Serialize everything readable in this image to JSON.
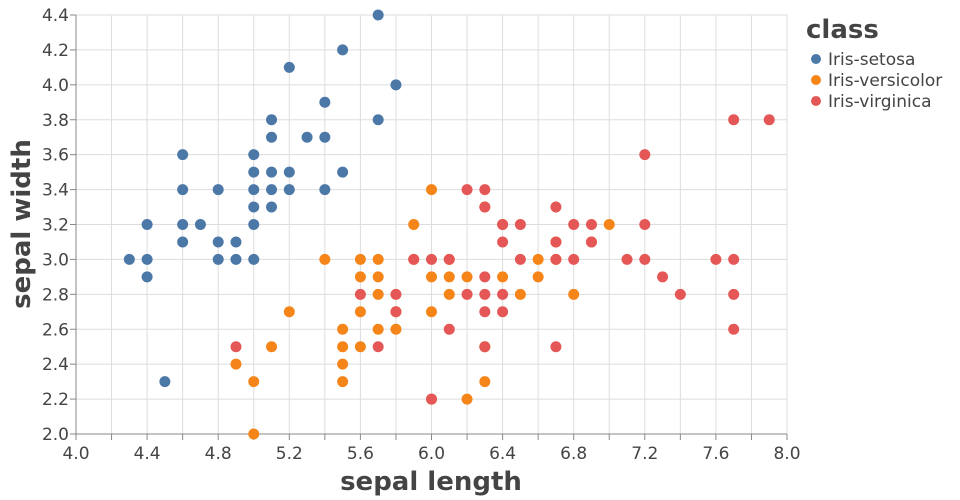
{
  "chart_data": {
    "type": "scatter",
    "title": "",
    "xlabel": "sepal length",
    "ylabel": "sepal width",
    "xlim": [
      4.0,
      8.0
    ],
    "ylim": [
      2.0,
      4.4
    ],
    "x_ticks": [
      "4.0",
      "4.4",
      "4.8",
      "5.2",
      "5.6",
      "6.0",
      "6.4",
      "6.8",
      "7.2",
      "7.6",
      "8.0"
    ],
    "y_ticks": [
      "2.0",
      "2.2",
      "2.4",
      "2.6",
      "2.8",
      "3.0",
      "3.2",
      "3.4",
      "3.6",
      "3.8",
      "4.0",
      "4.2",
      "4.4"
    ],
    "x_tick_values": [
      4.0,
      4.4,
      4.8,
      5.2,
      5.6,
      6.0,
      6.4,
      6.8,
      7.2,
      7.6,
      8.0
    ],
    "y_tick_values": [
      2.0,
      2.2,
      2.4,
      2.6,
      2.8,
      3.0,
      3.2,
      3.4,
      3.6,
      3.8,
      4.0,
      4.2,
      4.4
    ],
    "x_grid_step": 0.2,
    "y_grid_step": 0.2,
    "grid": true,
    "legend": {
      "title": "class",
      "position": "top-right"
    },
    "series": [
      {
        "name": "Iris-setosa",
        "color": "#4c78a8",
        "points": [
          [
            4.3,
            3.0
          ],
          [
            4.4,
            3.0
          ],
          [
            4.4,
            2.9
          ],
          [
            4.4,
            3.2
          ],
          [
            4.5,
            2.3
          ],
          [
            4.6,
            3.1
          ],
          [
            4.6,
            3.2
          ],
          [
            4.6,
            3.4
          ],
          [
            4.6,
            3.6
          ],
          [
            4.7,
            3.2
          ],
          [
            4.8,
            3.0
          ],
          [
            4.8,
            3.1
          ],
          [
            4.8,
            3.4
          ],
          [
            4.9,
            3.0
          ],
          [
            4.9,
            3.1
          ],
          [
            5.0,
            3.0
          ],
          [
            5.0,
            3.2
          ],
          [
            5.0,
            3.3
          ],
          [
            5.0,
            3.4
          ],
          [
            5.0,
            3.5
          ],
          [
            5.0,
            3.6
          ],
          [
            5.1,
            3.3
          ],
          [
            5.1,
            3.4
          ],
          [
            5.1,
            3.5
          ],
          [
            5.1,
            3.7
          ],
          [
            5.1,
            3.8
          ],
          [
            5.2,
            3.4
          ],
          [
            5.2,
            3.5
          ],
          [
            5.2,
            4.1
          ],
          [
            5.3,
            3.7
          ],
          [
            5.4,
            3.4
          ],
          [
            5.4,
            3.7
          ],
          [
            5.4,
            3.9
          ],
          [
            5.5,
            3.5
          ],
          [
            5.5,
            4.2
          ],
          [
            5.7,
            3.8
          ],
          [
            5.7,
            4.4
          ],
          [
            5.8,
            4.0
          ]
        ]
      },
      {
        "name": "Iris-versicolor",
        "color": "#f58518",
        "points": [
          [
            4.9,
            2.4
          ],
          [
            5.0,
            2.0
          ],
          [
            5.0,
            2.3
          ],
          [
            5.1,
            2.5
          ],
          [
            5.2,
            2.7
          ],
          [
            5.4,
            3.0
          ],
          [
            5.5,
            2.3
          ],
          [
            5.5,
            2.4
          ],
          [
            5.5,
            2.5
          ],
          [
            5.5,
            2.6
          ],
          [
            5.6,
            2.5
          ],
          [
            5.6,
            2.7
          ],
          [
            5.6,
            2.9
          ],
          [
            5.6,
            3.0
          ],
          [
            5.7,
            2.6
          ],
          [
            5.7,
            2.8
          ],
          [
            5.7,
            2.9
          ],
          [
            5.7,
            3.0
          ],
          [
            5.8,
            2.6
          ],
          [
            5.8,
            2.7
          ],
          [
            5.9,
            3.0
          ],
          [
            5.9,
            3.2
          ],
          [
            6.0,
            2.2
          ],
          [
            6.0,
            2.7
          ],
          [
            6.0,
            2.9
          ],
          [
            6.0,
            3.4
          ],
          [
            6.1,
            2.8
          ],
          [
            6.1,
            2.9
          ],
          [
            6.1,
            3.0
          ],
          [
            6.2,
            2.2
          ],
          [
            6.2,
            2.9
          ],
          [
            6.3,
            2.3
          ],
          [
            6.3,
            2.5
          ],
          [
            6.3,
            3.3
          ],
          [
            6.4,
            2.9
          ],
          [
            6.4,
            3.2
          ],
          [
            6.5,
            2.8
          ],
          [
            6.6,
            2.9
          ],
          [
            6.6,
            3.0
          ],
          [
            6.7,
            3.0
          ],
          [
            6.7,
            3.1
          ],
          [
            6.8,
            2.8
          ],
          [
            6.9,
            3.1
          ],
          [
            7.0,
            3.2
          ]
        ]
      },
      {
        "name": "Iris-virginica",
        "color": "#e45756",
        "points": [
          [
            4.9,
            2.5
          ],
          [
            5.6,
            2.8
          ],
          [
            5.7,
            2.5
          ],
          [
            5.8,
            2.7
          ],
          [
            5.8,
            2.8
          ],
          [
            5.9,
            3.0
          ],
          [
            6.0,
            2.2
          ],
          [
            6.0,
            3.0
          ],
          [
            6.1,
            2.6
          ],
          [
            6.1,
            3.0
          ],
          [
            6.2,
            2.8
          ],
          [
            6.2,
            3.4
          ],
          [
            6.3,
            2.5
          ],
          [
            6.3,
            2.7
          ],
          [
            6.3,
            2.8
          ],
          [
            6.3,
            2.9
          ],
          [
            6.3,
            3.3
          ],
          [
            6.3,
            3.4
          ],
          [
            6.4,
            2.7
          ],
          [
            6.4,
            2.8
          ],
          [
            6.4,
            3.1
          ],
          [
            6.4,
            3.2
          ],
          [
            6.5,
            3.0
          ],
          [
            6.5,
            3.2
          ],
          [
            6.7,
            2.5
          ],
          [
            6.7,
            3.0
          ],
          [
            6.7,
            3.1
          ],
          [
            6.7,
            3.3
          ],
          [
            6.8,
            3.0
          ],
          [
            6.8,
            3.2
          ],
          [
            6.9,
            3.1
          ],
          [
            6.9,
            3.2
          ],
          [
            7.1,
            3.0
          ],
          [
            7.2,
            3.0
          ],
          [
            7.2,
            3.2
          ],
          [
            7.2,
            3.6
          ],
          [
            7.3,
            2.9
          ],
          [
            7.4,
            2.8
          ],
          [
            7.6,
            3.0
          ],
          [
            7.7,
            2.6
          ],
          [
            7.7,
            2.8
          ],
          [
            7.7,
            3.0
          ],
          [
            7.7,
            3.8
          ],
          [
            7.9,
            3.8
          ]
        ]
      }
    ]
  }
}
